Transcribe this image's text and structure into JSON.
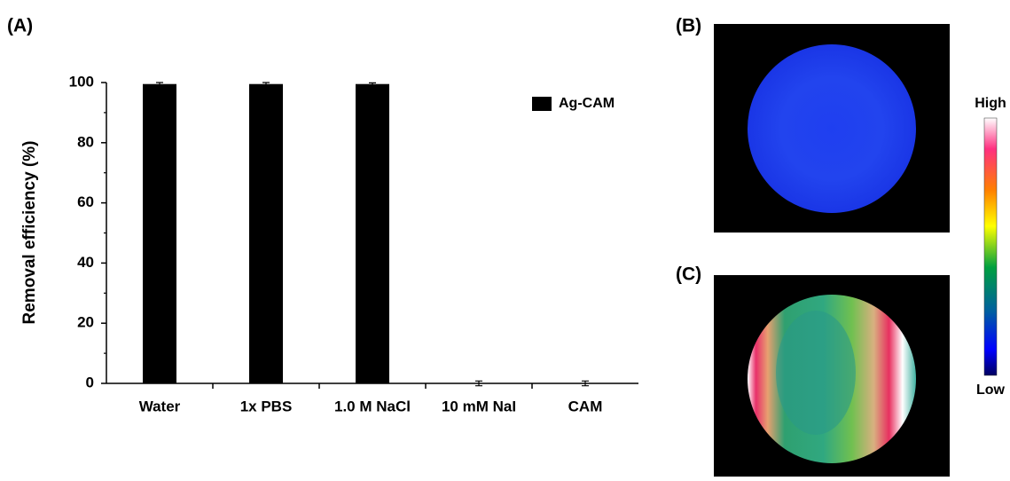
{
  "chart_data": {
    "type": "bar",
    "ylabel": "Removal efficiency (%)",
    "categories": [
      "Water",
      "1x PBS",
      "1.0 M NaCl",
      "10 mM NaI",
      "CAM"
    ],
    "series": [
      {
        "name": "Ag-CAM",
        "color": "#000000",
        "values": [
          99.5,
          99.5,
          99.5,
          0,
          0
        ],
        "errors": [
          0.5,
          0.5,
          0.4,
          0.8,
          0.8
        ]
      }
    ],
    "ylim": [
      0,
      100
    ],
    "yticks": [
      0,
      20,
      40,
      60,
      80,
      100
    ],
    "yminorticks": [
      10,
      30,
      50,
      70,
      90
    ],
    "grid": false,
    "legend": "upper right"
  },
  "panel_labels": [
    "(A)",
    "(B)",
    "(C)"
  ],
  "colorbar": {
    "high": "High",
    "low": "Low"
  }
}
